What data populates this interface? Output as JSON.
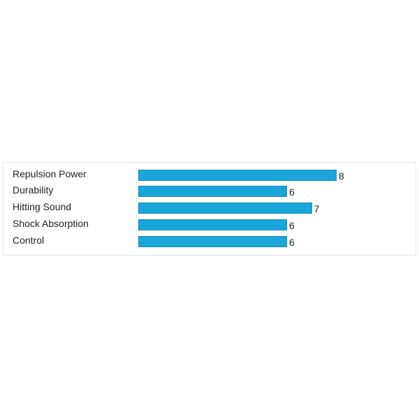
{
  "chart_data": {
    "type": "bar",
    "orientation": "horizontal",
    "categories": [
      "Repulsion Power",
      "Durability",
      "Hitting Sound",
      "Shock Absorption",
      "Control"
    ],
    "values": [
      8,
      6,
      7,
      6,
      6
    ],
    "data_labels": [
      "8",
      "6",
      "7",
      "6",
      "6"
    ],
    "color": "#1aa6d8",
    "grid": false
  }
}
